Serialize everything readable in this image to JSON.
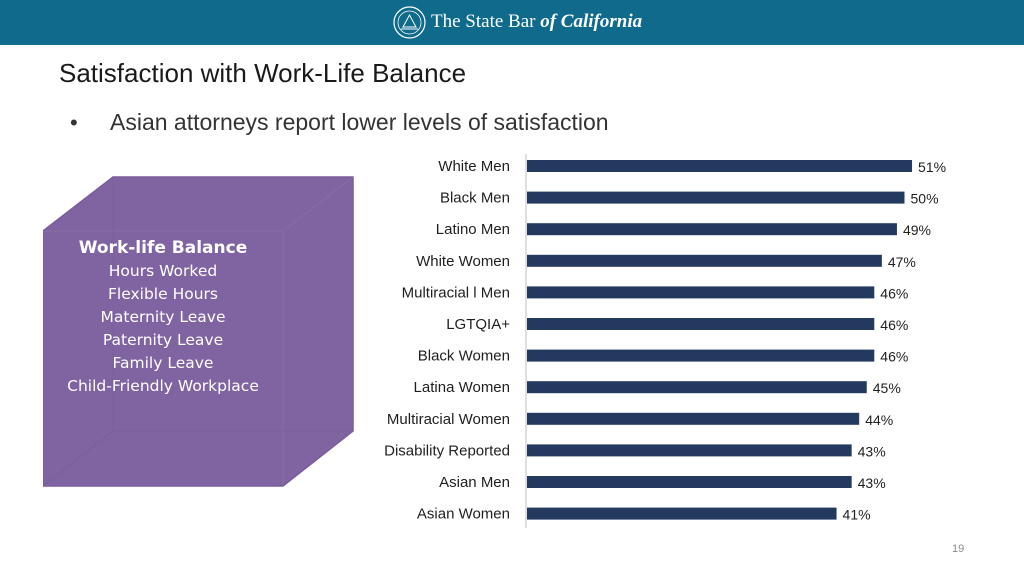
{
  "header": {
    "org_name_part1": "The State Bar ",
    "org_name_part2": "of California",
    "seal_icon": "state-bar-seal-icon"
  },
  "slide": {
    "title": "Satisfaction with Work-Life Balance",
    "bullet_glyph": "•",
    "subtitle": "Asian attorneys report lower levels of satisfaction",
    "page_number": "19"
  },
  "cube": {
    "heading": "Work-life Balance",
    "items": [
      "Hours Worked",
      "Flexible Hours",
      "Maternity Leave",
      "Paternity Leave",
      "Family Leave",
      "Child-Friendly Workplace"
    ],
    "color": "#8064a2"
  },
  "chart_data": {
    "type": "bar",
    "orientation": "horizontal",
    "title": "",
    "xlabel": "",
    "ylabel": "",
    "categories": [
      "White Men",
      "Black Men",
      "Latino Men",
      "White Women",
      "Multiracial l Men",
      "LGTQIA+",
      "Black Women",
      "Latina Women",
      "Multiracial Women",
      "Disability Reported",
      "Asian Men",
      "Asian Women"
    ],
    "values": [
      51,
      50,
      49,
      47,
      46,
      46,
      46,
      45,
      44,
      43,
      43,
      41
    ],
    "value_labels": [
      "51%",
      "50%",
      "49%",
      "47%",
      "46%",
      "46%",
      "46%",
      "45%",
      "44%",
      "43%",
      "43%",
      "41%"
    ],
    "xlim": [
      0,
      100
    ],
    "grid": false,
    "bar_color": "#233a5e"
  }
}
